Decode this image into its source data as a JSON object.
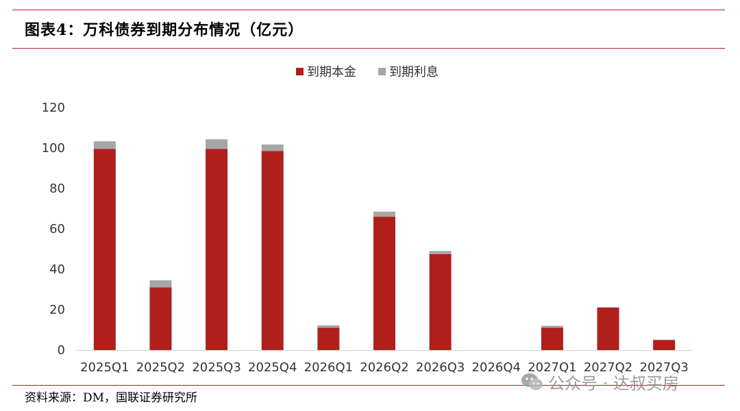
{
  "title": "图表4：万科债券到期分布情况（亿元）",
  "source": "资料来源：DM，国联证券研究所",
  "watermark": "公众号 · 达叔买房",
  "colors": {
    "principal": "#b01f1a",
    "interest": "#a6a6a6",
    "rule": "#b01c1c"
  },
  "chart_data": {
    "type": "bar",
    "stacked": true,
    "categories": [
      "2025Q1",
      "2025Q2",
      "2025Q3",
      "2025Q4",
      "2026Q1",
      "2026Q2",
      "2026Q3",
      "2026Q4",
      "2027Q1",
      "2027Q2",
      "2027Q3"
    ],
    "series": [
      {
        "name": "到期本金",
        "values": [
          99.5,
          31,
          99.5,
          98.5,
          11,
          66,
          47.5,
          0,
          11,
          21,
          5
        ]
      },
      {
        "name": "到期利息",
        "values": [
          3.8,
          3.5,
          4.8,
          3.2,
          1.2,
          2.5,
          1.5,
          0,
          1.0,
          0.2,
          0.1
        ]
      }
    ],
    "ylim": [
      0,
      120
    ],
    "yticks": [
      0,
      20,
      40,
      60,
      80,
      100,
      120
    ],
    "legend_position": "top-center",
    "grid": false
  }
}
